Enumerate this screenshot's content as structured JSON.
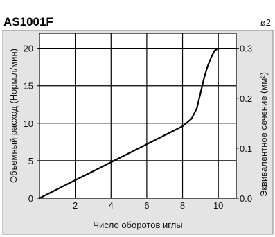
{
  "header": {
    "title": "AS1001F",
    "badge": "ø2"
  },
  "chart_data": {
    "type": "line",
    "title": "AS1001F",
    "xlabel": "Число оборотов иглы",
    "ylabel": "Объемный расход (Норм.л/мин)",
    "ylabel_right": "Эквивалентное сечение (мм²)",
    "xlim": [
      0,
      11
    ],
    "ylim": [
      0,
      22
    ],
    "ylim_right": [
      0,
      0.33
    ],
    "x_ticks": [
      2,
      4,
      6,
      8,
      10
    ],
    "x_tick_labels": [
      "2",
      "4",
      "6",
      "8",
      "10"
    ],
    "y_ticks": [
      0,
      5,
      10,
      15,
      20
    ],
    "y_tick_labels": [
      "0",
      "5",
      "10",
      "15",
      "20"
    ],
    "y_right_ticks": [
      0.0,
      0.1,
      0.2,
      0.3
    ],
    "y_right_tick_labels": [
      "0.0",
      "0.1",
      "0.2",
      "0.3"
    ],
    "grid": true,
    "series": [
      {
        "x": [
          0,
          1,
          2,
          3,
          4,
          5,
          6,
          7,
          8,
          8.5,
          8.8,
          9.0,
          9.2,
          9.4,
          9.6,
          9.8,
          10.0
        ],
        "y": [
          0,
          1.2,
          2.4,
          3.6,
          4.8,
          6.0,
          7.2,
          8.4,
          9.6,
          10.6,
          12.0,
          14.0,
          16.0,
          17.6,
          18.8,
          19.7,
          20.0
        ]
      }
    ],
    "colors": {
      "plot_bg": "#ffffff",
      "frame_bg": "#e4e4e4",
      "line": "#000000",
      "grid": "#000000"
    }
  }
}
